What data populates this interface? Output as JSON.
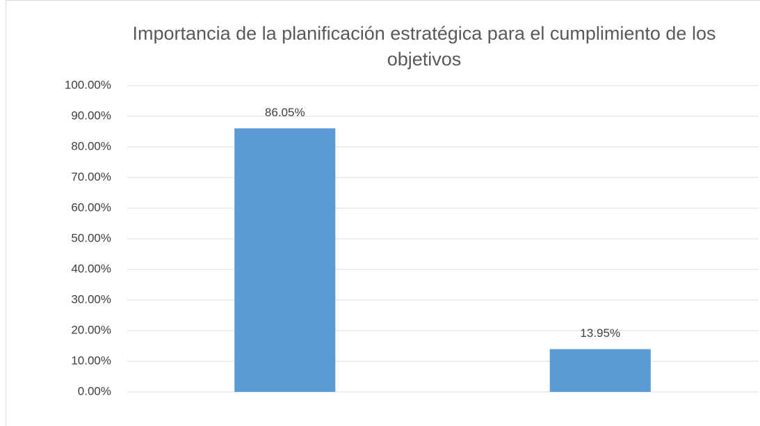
{
  "chart_data": {
    "type": "bar",
    "title": "Importancia de la planificación estratégica para el cumplimiento de los objetivos",
    "categories": [
      null,
      null
    ],
    "values": [
      86.05,
      13.95
    ],
    "value_labels": [
      "86.05%",
      "13.95%"
    ],
    "color": "#5b9bd5",
    "ylim": [
      0,
      100
    ],
    "yticks": [
      {
        "value": 0,
        "label": "0.00%"
      },
      {
        "value": 10,
        "label": "10.00%"
      },
      {
        "value": 20,
        "label": "20.00%"
      },
      {
        "value": 30,
        "label": "30.00%"
      },
      {
        "value": 40,
        "label": "40.00%"
      },
      {
        "value": 50,
        "label": "50.00%"
      },
      {
        "value": 60,
        "label": "60.00%"
      },
      {
        "value": 70,
        "label": "70.00%"
      },
      {
        "value": 80,
        "label": "80.00%"
      },
      {
        "value": 90,
        "label": "90.00%"
      },
      {
        "value": 100,
        "label": "100.00%"
      }
    ],
    "grid": true
  }
}
